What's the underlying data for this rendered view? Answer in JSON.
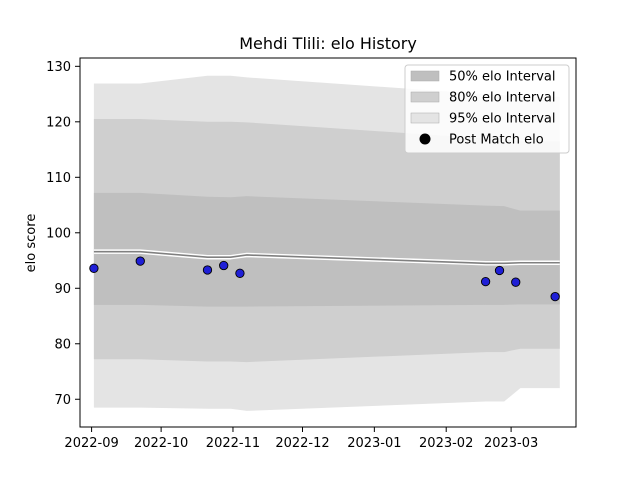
{
  "chart_data": {
    "type": "line",
    "title": "Mehdi Tlili: elo History",
    "xlabel": "",
    "ylabel": "elo score",
    "xlim": [
      "2022-08-27",
      "2023-03-29"
    ],
    "ylim": [
      65,
      131.5
    ],
    "x_ticks": [
      "2022-09",
      "2022-10",
      "2022-11",
      "2022-12",
      "2023-01",
      "2023-02",
      "2023-03"
    ],
    "y_ticks": [
      70,
      80,
      90,
      100,
      110,
      120,
      130
    ],
    "grid": false,
    "legend_position": "top-right",
    "colors": {
      "band_50": "#bfbfbf",
      "band_80": "#cfcfcf",
      "band_95": "#e4e4e4",
      "mean_line": "#808080",
      "points_fill": "#1f1fd6",
      "points_edge": "#000000"
    },
    "legend": [
      {
        "label": "50% elo Interval",
        "swatch": "band_50"
      },
      {
        "label": "80% elo Interval",
        "swatch": "band_80"
      },
      {
        "label": "95% elo Interval",
        "swatch": "band_95"
      },
      {
        "label": "Post Match elo",
        "swatch": "marker"
      }
    ],
    "band_dates": [
      "2022-09-02",
      "2022-09-22",
      "2022-10-21",
      "2022-10-31",
      "2022-11-07",
      "2023-02-18",
      "2023-02-26",
      "2023-03-05",
      "2023-03-22"
    ],
    "mean": [
      96.6,
      96.6,
      95.6,
      95.6,
      96.0,
      94.5,
      94.5,
      94.6,
      94.6
    ],
    "band_50": {
      "upper": [
        107.2,
        107.2,
        106.5,
        106.4,
        106.6,
        104.9,
        104.8,
        104.0,
        104.0
      ],
      "lower": [
        87.0,
        87.0,
        86.7,
        86.7,
        86.7,
        87.0,
        87.0,
        87.1,
        87.1
      ]
    },
    "band_80": {
      "upper": [
        120.5,
        120.5,
        120.0,
        120.0,
        119.9,
        117.0,
        116.8,
        116.5,
        116.5
      ],
      "lower": [
        77.2,
        77.2,
        76.8,
        76.8,
        76.7,
        78.5,
        78.5,
        79.1,
        79.1
      ]
    },
    "band_95": {
      "upper": [
        126.9,
        126.9,
        128.3,
        128.3,
        128.0,
        125.0,
        124.8,
        124.5,
        124.5
      ],
      "lower": [
        68.5,
        68.5,
        68.3,
        68.3,
        67.9,
        69.6,
        69.6,
        72.0,
        72.0
      ]
    },
    "points": [
      {
        "x": "2022-09-02",
        "y": 93.6
      },
      {
        "x": "2022-09-22",
        "y": 94.9
      },
      {
        "x": "2022-10-21",
        "y": 93.3
      },
      {
        "x": "2022-10-28",
        "y": 94.1
      },
      {
        "x": "2022-11-04",
        "y": 92.7
      },
      {
        "x": "2023-02-18",
        "y": 91.2
      },
      {
        "x": "2023-02-24",
        "y": 93.2
      },
      {
        "x": "2023-03-03",
        "y": 91.1
      },
      {
        "x": "2023-03-20",
        "y": 88.5
      }
    ]
  }
}
